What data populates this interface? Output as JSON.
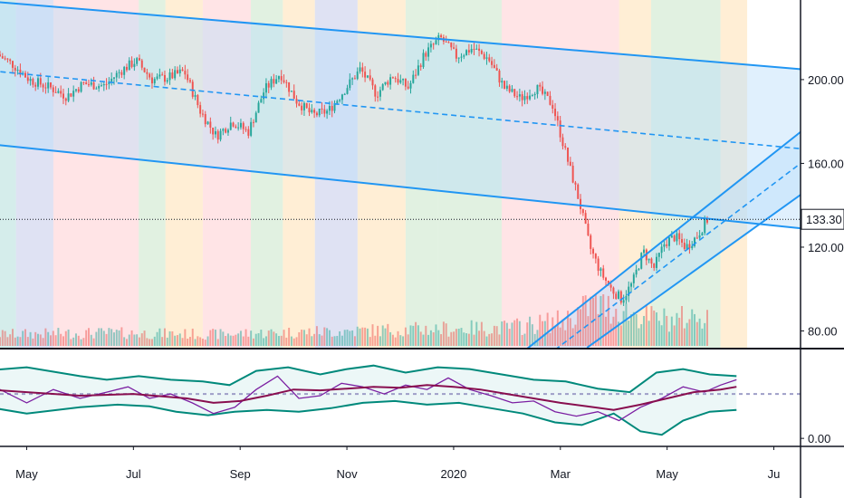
{
  "chart_data": [
    {
      "type": "candlestick",
      "title": "",
      "x_axis": {
        "ticks": [
          {
            "label": "May",
            "t": 0.5
          },
          {
            "label": "Jul",
            "t": 2.5
          },
          {
            "label": "Sep",
            "t": 4.5
          },
          {
            "label": "Nov",
            "t": 6.5
          },
          {
            "label": "2020",
            "t": 8.5
          },
          {
            "label": "Mar",
            "t": 10.5
          },
          {
            "label": "May",
            "t": 12.5
          },
          {
            "label": "Ju",
            "t": 14.5
          }
        ],
        "range": [
          0,
          15
        ]
      },
      "y_axis": {
        "ticks": [
          {
            "label": "80.00",
            "value": 80
          },
          {
            "label": "120.00",
            "value": 120
          },
          {
            "label": "160.00",
            "value": 160
          },
          {
            "label": "200.00",
            "value": 200
          }
        ],
        "range": [
          72,
          238
        ]
      },
      "last_price": {
        "label": "133.30",
        "value": 133.3
      },
      "price_anchors": [
        [
          0.0,
          212
        ],
        [
          0.3,
          207
        ],
        [
          0.6,
          200
        ],
        [
          1.0,
          196
        ],
        [
          1.3,
          192
        ],
        [
          1.6,
          198
        ],
        [
          2.0,
          197
        ],
        [
          2.3,
          204
        ],
        [
          2.6,
          209
        ],
        [
          2.9,
          200
        ],
        [
          3.2,
          201
        ],
        [
          3.5,
          204
        ],
        [
          3.8,
          185
        ],
        [
          4.1,
          173
        ],
        [
          4.4,
          180
        ],
        [
          4.7,
          175
        ],
        [
          5.0,
          195
        ],
        [
          5.3,
          203
        ],
        [
          5.6,
          190
        ],
        [
          5.9,
          183
        ],
        [
          6.2,
          185
        ],
        [
          6.5,
          195
        ],
        [
          6.8,
          205
        ],
        [
          7.1,
          193
        ],
        [
          7.4,
          202
        ],
        [
          7.7,
          196
        ],
        [
          8.0,
          212
        ],
        [
          8.3,
          220
        ],
        [
          8.6,
          211
        ],
        [
          8.9,
          215
        ],
        [
          9.2,
          210
        ],
        [
          9.5,
          196
        ],
        [
          9.8,
          191
        ],
        [
          10.1,
          196
        ],
        [
          10.4,
          188
        ],
        [
          10.7,
          160
        ],
        [
          10.9,
          142
        ],
        [
          11.1,
          120
        ],
        [
          11.3,
          108
        ],
        [
          11.5,
          100
        ],
        [
          11.7,
          95
        ],
        [
          11.9,
          103
        ],
        [
          12.1,
          118
        ],
        [
          12.3,
          110
        ],
        [
          12.5,
          122
        ],
        [
          12.7,
          125
        ],
        [
          12.9,
          120
        ],
        [
          13.1,
          125
        ],
        [
          13.3,
          133
        ]
      ],
      "volume": {
        "base": 0,
        "max": 100,
        "levels": [
          [
            0.0,
            18
          ],
          [
            2.0,
            20
          ],
          [
            4.0,
            18
          ],
          [
            6.0,
            22
          ],
          [
            8.0,
            26
          ],
          [
            9.5,
            28
          ],
          [
            10.6,
            40
          ],
          [
            11.1,
            65
          ],
          [
            11.6,
            55
          ],
          [
            12.1,
            45
          ],
          [
            12.6,
            40
          ],
          [
            13.3,
            50
          ]
        ]
      },
      "channels": [
        {
          "name": "",
          "upper": [
            [
              -0.5,
              238
            ],
            [
              15,
              205
            ]
          ],
          "lower": [
            [
              -0.5,
              170
            ],
            [
              15,
              129
            ]
          ],
          "median": [
            [
              -0.5,
              205
            ],
            [
              15,
              167
            ]
          ],
          "color": "#2196f3"
        },
        {
          "name": "",
          "upper": [
            [
              9.8,
              70
            ],
            [
              15,
              175
            ]
          ],
          "lower": [
            [
              11.0,
              72
            ],
            [
              15,
              145
            ]
          ],
          "median": [
            [
              10.4,
              71
            ],
            [
              15,
              160
            ]
          ],
          "color": "#2196f3"
        }
      ],
      "bands": [
        {
          "t0": -0.5,
          "t1": 0.3,
          "color": "#b2dfdb"
        },
        {
          "t0": 0.3,
          "t1": 1.0,
          "color": "#c5cae9"
        },
        {
          "t0": 1.0,
          "t1": 2.6,
          "color": "#ffcdd2"
        },
        {
          "t0": 2.6,
          "t1": 3.1,
          "color": "#c8e6c9"
        },
        {
          "t0": 3.1,
          "t1": 3.8,
          "color": "#ffe0b2"
        },
        {
          "t0": 3.8,
          "t1": 4.7,
          "color": "#ffcdd2"
        },
        {
          "t0": 4.7,
          "t1": 5.3,
          "color": "#c8e6c9"
        },
        {
          "t0": 5.3,
          "t1": 5.9,
          "color": "#ffe0b2"
        },
        {
          "t0": 5.9,
          "t1": 6.7,
          "color": "#c5cae9"
        },
        {
          "t0": 6.7,
          "t1": 7.6,
          "color": "#ffe0b2"
        },
        {
          "t0": 7.6,
          "t1": 8.2,
          "color": "#c8e6c9"
        },
        {
          "t0": 8.2,
          "t1": 9.4,
          "color": "#c8e6c9"
        },
        {
          "t0": 9.4,
          "t1": 11.6,
          "color": "#ffcdd2"
        },
        {
          "t0": 11.6,
          "t1": 12.2,
          "color": "#ffe0b2"
        },
        {
          "t0": 12.2,
          "t1": 13.5,
          "color": "#c8e6c9"
        },
        {
          "t0": 13.5,
          "t1": 14.0,
          "color": "#ffe0b2"
        }
      ],
      "colors": {
        "up": "#26a69a",
        "down": "#ef5350",
        "channel_fill": "#bbdefb",
        "price_line": "#131722"
      }
    },
    {
      "type": "line",
      "title": "",
      "y_axis": {
        "ticks": [
          {
            "label": "0.00",
            "value": 0
          }
        ],
        "range": [
          -8,
          100
        ]
      },
      "dashed_level": 50,
      "series": [
        {
          "role": "upper-band",
          "color": "#00897b",
          "points": [
            [
              -0.5,
              75
            ],
            [
              0.5,
              80
            ],
            [
              1.5,
              70
            ],
            [
              2.0,
              66
            ],
            [
              2.6,
              70
            ],
            [
              3.2,
              66
            ],
            [
              3.8,
              64
            ],
            [
              4.3,
              60
            ],
            [
              4.8,
              76
            ],
            [
              5.4,
              80
            ],
            [
              6.0,
              72
            ],
            [
              6.5,
              78
            ],
            [
              7.0,
              82
            ],
            [
              7.6,
              74
            ],
            [
              8.2,
              80
            ],
            [
              8.8,
              78
            ],
            [
              9.4,
              72
            ],
            [
              10.0,
              66
            ],
            [
              10.6,
              64
            ],
            [
              11.2,
              56
            ],
            [
              11.8,
              52
            ],
            [
              12.3,
              74
            ],
            [
              12.8,
              78
            ],
            [
              13.3,
              72
            ],
            [
              13.8,
              70
            ]
          ]
        },
        {
          "role": "lower-band",
          "color": "#00897b",
          "points": [
            [
              -0.5,
              38
            ],
            [
              0.5,
              28
            ],
            [
              1.5,
              35
            ],
            [
              2.2,
              38
            ],
            [
              2.8,
              36
            ],
            [
              3.3,
              30
            ],
            [
              3.9,
              26
            ],
            [
              4.4,
              30
            ],
            [
              5.0,
              32
            ],
            [
              5.6,
              30
            ],
            [
              6.2,
              34
            ],
            [
              6.8,
              40
            ],
            [
              7.4,
              42
            ],
            [
              8.0,
              38
            ],
            [
              8.6,
              40
            ],
            [
              9.2,
              34
            ],
            [
              9.8,
              28
            ],
            [
              10.4,
              18
            ],
            [
              10.9,
              15
            ],
            [
              11.5,
              28
            ],
            [
              12.0,
              8
            ],
            [
              12.4,
              4
            ],
            [
              12.8,
              20
            ],
            [
              13.3,
              30
            ],
            [
              13.8,
              32
            ]
          ]
        },
        {
          "role": "oscillator",
          "color": "#7b1fa2",
          "points": [
            [
              -0.5,
              60
            ],
            [
              0.0,
              55
            ],
            [
              0.5,
              40
            ],
            [
              1.0,
              55
            ],
            [
              1.5,
              45
            ],
            [
              2.0,
              52
            ],
            [
              2.4,
              58
            ],
            [
              2.8,
              45
            ],
            [
              3.2,
              50
            ],
            [
              3.6,
              40
            ],
            [
              4.0,
              28
            ],
            [
              4.4,
              35
            ],
            [
              4.8,
              55
            ],
            [
              5.2,
              70
            ],
            [
              5.6,
              45
            ],
            [
              6.0,
              48
            ],
            [
              6.4,
              62
            ],
            [
              6.8,
              58
            ],
            [
              7.2,
              50
            ],
            [
              7.6,
              60
            ],
            [
              8.0,
              55
            ],
            [
              8.4,
              68
            ],
            [
              8.8,
              55
            ],
            [
              9.2,
              48
            ],
            [
              9.6,
              40
            ],
            [
              10.0,
              42
            ],
            [
              10.4,
              30
            ],
            [
              10.8,
              25
            ],
            [
              11.2,
              30
            ],
            [
              11.6,
              20
            ],
            [
              12.0,
              35
            ],
            [
              12.4,
              45
            ],
            [
              12.8,
              58
            ],
            [
              13.2,
              52
            ],
            [
              13.5,
              60
            ],
            [
              13.8,
              66
            ]
          ]
        },
        {
          "role": "signal",
          "color": "#880e4f",
          "points": [
            [
              -0.5,
              56
            ],
            [
              0.5,
              52
            ],
            [
              1.5,
              48
            ],
            [
              2.5,
              50
            ],
            [
              3.5,
              45
            ],
            [
              4.0,
              40
            ],
            [
              4.5,
              42
            ],
            [
              5.0,
              48
            ],
            [
              5.5,
              55
            ],
            [
              6.0,
              54
            ],
            [
              6.5,
              56
            ],
            [
              7.0,
              58
            ],
            [
              7.5,
              57
            ],
            [
              8.0,
              60
            ],
            [
              8.5,
              58
            ],
            [
              9.0,
              55
            ],
            [
              9.5,
              50
            ],
            [
              10.0,
              45
            ],
            [
              10.5,
              40
            ],
            [
              11.0,
              36
            ],
            [
              11.5,
              32
            ],
            [
              12.0,
              38
            ],
            [
              12.5,
              45
            ],
            [
              13.0,
              52
            ],
            [
              13.5,
              55
            ],
            [
              13.8,
              58
            ]
          ]
        }
      ]
    }
  ]
}
